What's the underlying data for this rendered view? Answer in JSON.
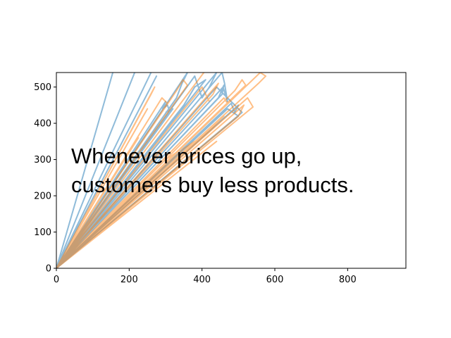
{
  "chart_data": {
    "type": "line",
    "title": "",
    "xlabel": "",
    "ylabel": "",
    "xlim": [
      0,
      960
    ],
    "ylim": [
      0,
      540
    ],
    "x_ticks": [
      0,
      200,
      400,
      600,
      800
    ],
    "y_ticks": [
      0,
      100,
      200,
      300,
      400,
      500
    ],
    "grid": false,
    "legend": "none",
    "annotation": [
      "Whenever prices go up,",
      "customers buy less products."
    ],
    "series_colors": [
      "#1f77b4",
      "#ff7f0e"
    ],
    "series_alpha": 0.5,
    "series": [
      {
        "color": "#1f77b4",
        "points": [
          [
            0,
            0
          ],
          [
            155,
            540
          ],
          [
            0,
            0
          ],
          [
            215,
            540
          ],
          [
            0,
            0
          ],
          [
            260,
            540
          ],
          [
            0,
            0
          ],
          [
            275,
            530
          ],
          [
            0,
            0
          ],
          [
            300,
            460
          ],
          [
            292,
            440
          ],
          [
            305,
            450
          ],
          [
            312,
            430
          ],
          [
            0,
            0
          ],
          [
            330,
            470
          ],
          [
            345,
            510
          ],
          [
            360,
            540
          ],
          [
            0,
            0
          ],
          [
            380,
            530
          ],
          [
            400,
            470
          ],
          [
            420,
            500
          ],
          [
            440,
            540
          ],
          [
            0,
            0
          ],
          [
            455,
            540
          ],
          [
            462,
            510
          ],
          [
            470,
            460
          ],
          [
            458,
            500
          ],
          [
            0,
            0
          ],
          [
            480,
            455
          ],
          [
            490,
            430
          ],
          [
            500,
            450
          ],
          [
            0,
            0
          ],
          [
            510,
            430
          ],
          [
            470,
            470
          ],
          [
            440,
            500
          ],
          [
            0,
            0
          ],
          [
            350,
            450
          ],
          [
            380,
            500
          ],
          [
            410,
            520
          ],
          [
            0,
            0
          ],
          [
            500,
            420
          ],
          [
            470,
            440
          ],
          [
            0,
            0
          ],
          [
            445,
            470
          ],
          [
            460,
            505
          ],
          [
            455,
            480
          ],
          [
            0,
            0
          ],
          [
            320,
            440
          ],
          [
            300,
            430
          ]
        ]
      },
      {
        "color": "#ff7f0e",
        "points": [
          [
            0,
            0
          ],
          [
            225,
            360
          ],
          [
            0,
            0
          ],
          [
            250,
            440
          ],
          [
            0,
            0
          ],
          [
            260,
            480
          ],
          [
            270,
            500
          ],
          [
            0,
            0
          ],
          [
            290,
            470
          ],
          [
            305,
            455
          ],
          [
            0,
            0
          ],
          [
            330,
            490
          ],
          [
            348,
            520
          ],
          [
            360,
            505
          ],
          [
            0,
            0
          ],
          [
            390,
            520
          ],
          [
            405,
            540
          ],
          [
            0,
            0
          ],
          [
            430,
            480
          ],
          [
            445,
            510
          ],
          [
            0,
            0
          ],
          [
            460,
            470
          ],
          [
            470,
            455
          ],
          [
            0,
            0
          ],
          [
            490,
            490
          ],
          [
            510,
            520
          ],
          [
            520,
            505
          ],
          [
            0,
            0
          ],
          [
            540,
            445
          ],
          [
            525,
            470
          ],
          [
            0,
            0
          ],
          [
            560,
            540
          ],
          [
            575,
            530
          ],
          [
            555,
            510
          ],
          [
            0,
            0
          ],
          [
            440,
            350
          ],
          [
            0,
            0
          ],
          [
            500,
            420
          ],
          [
            515,
            450
          ],
          [
            0,
            0
          ],
          [
            420,
            380
          ],
          [
            460,
            420
          ],
          [
            0,
            0
          ],
          [
            350,
            330
          ],
          [
            380,
            350
          ],
          [
            0,
            0
          ],
          [
            300,
            300
          ],
          [
            330,
            320
          ],
          [
            0,
            0
          ],
          [
            400,
            500
          ],
          [
            420,
            460
          ]
        ]
      }
    ]
  }
}
